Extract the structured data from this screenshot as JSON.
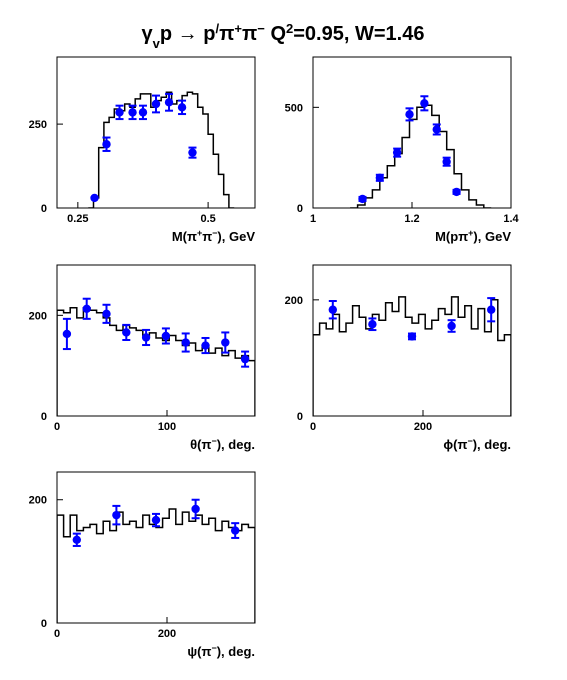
{
  "title": {
    "reaction_gamma": "γ",
    "reaction_gamma_sub": "v",
    "reaction_p": "p",
    "reaction_arrow": " → ",
    "reaction_rest": "p",
    "reaction_prime": "/",
    "reaction_pi1": "π",
    "reaction_pi1_sup": "+",
    "reaction_pi2": "π",
    "reaction_pi2_sup": "−",
    "q2_label": "Q",
    "q2_sup": "2",
    "q2_rest": "=0.95, W=1.46"
  },
  "colors": {
    "data": "#0000ff",
    "histogram": "#000000",
    "frame": "#000000"
  },
  "chart_data": [
    {
      "id": "m-pipi",
      "type": "histogram+errorbar",
      "xlabel_html": "M(π<tspan baseline-shift='super' font-size='9'>+</tspan>π<tspan baseline-shift='super' font-size='9'>−</tspan>), GeV",
      "xlabel": "M(π+π−), GeV",
      "xlim": [
        0.21,
        0.59
      ],
      "ylim": [
        0,
        450
      ],
      "xticks": [
        0.25,
        0.5
      ],
      "xtick_labels": [
        "0.25",
        "0.5"
      ],
      "yticks": [
        0,
        250
      ],
      "ytick_labels": [
        "0",
        "250"
      ],
      "hist": [
        [
          0.27,
          0
        ],
        [
          0.28,
          30
        ],
        [
          0.29,
          180
        ],
        [
          0.3,
          255
        ],
        [
          0.31,
          270
        ],
        [
          0.32,
          295
        ],
        [
          0.33,
          290
        ],
        [
          0.34,
          310
        ],
        [
          0.35,
          300
        ],
        [
          0.36,
          325
        ],
        [
          0.37,
          340
        ],
        [
          0.38,
          340
        ],
        [
          0.39,
          300
        ],
        [
          0.4,
          320
        ],
        [
          0.41,
          330
        ],
        [
          0.42,
          345
        ],
        [
          0.43,
          310
        ],
        [
          0.44,
          320
        ],
        [
          0.45,
          335
        ],
        [
          0.46,
          345
        ],
        [
          0.47,
          340
        ],
        [
          0.48,
          300
        ],
        [
          0.49,
          280
        ],
        [
          0.5,
          220
        ],
        [
          0.51,
          160
        ],
        [
          0.52,
          100
        ],
        [
          0.53,
          40
        ],
        [
          0.54,
          0
        ]
      ],
      "points": [
        [
          0.282,
          30,
          0
        ],
        [
          0.305,
          190,
          20
        ],
        [
          0.33,
          285,
          20
        ],
        [
          0.355,
          285,
          20
        ],
        [
          0.375,
          285,
          20
        ],
        [
          0.4,
          310,
          25
        ],
        [
          0.425,
          315,
          25
        ],
        [
          0.45,
          300,
          20
        ],
        [
          0.47,
          165,
          15
        ]
      ]
    },
    {
      "id": "m-ppi",
      "type": "histogram+errorbar",
      "xlabel_html": "M(pπ<tspan baseline-shift='super' font-size='9'>+</tspan>), GeV",
      "xlabel": "M(pπ+), GeV",
      "xlim": [
        1.0,
        1.4
      ],
      "ylim": [
        0,
        750
      ],
      "xticks": [
        1.0,
        1.2,
        1.4
      ],
      "xtick_labels": [
        "1",
        "1.2",
        "1.4"
      ],
      "yticks": [
        0,
        500
      ],
      "ytick_labels": [
        "0",
        "500"
      ],
      "hist": [
        [
          1.075,
          0
        ],
        [
          1.09,
          15
        ],
        [
          1.105,
          50
        ],
        [
          1.12,
          90
        ],
        [
          1.135,
          150
        ],
        [
          1.15,
          210
        ],
        [
          1.165,
          270
        ],
        [
          1.18,
          350
        ],
        [
          1.195,
          440
        ],
        [
          1.21,
          500
        ],
        [
          1.225,
          510
        ],
        [
          1.24,
          460
        ],
        [
          1.255,
          380
        ],
        [
          1.27,
          290
        ],
        [
          1.285,
          170
        ],
        [
          1.3,
          90
        ],
        [
          1.315,
          40
        ],
        [
          1.33,
          15
        ],
        [
          1.345,
          0
        ]
      ],
      "points": [
        [
          1.1,
          45,
          10
        ],
        [
          1.135,
          150,
          15
        ],
        [
          1.17,
          275,
          20
        ],
        [
          1.195,
          465,
          30
        ],
        [
          1.225,
          520,
          35
        ],
        [
          1.25,
          390,
          25
        ],
        [
          1.27,
          230,
          20
        ],
        [
          1.29,
          80,
          10
        ]
      ]
    },
    {
      "id": "theta-pi",
      "type": "histogram+errorbar",
      "xlabel_html": "θ(π<tspan baseline-shift='super' font-size='9'>−</tspan>), deg.",
      "xlabel": "θ(π−), deg.",
      "xlim": [
        0,
        180
      ],
      "ylim": [
        0,
        300
      ],
      "xticks": [
        0,
        100
      ],
      "xtick_labels": [
        "0",
        "100"
      ],
      "yticks": [
        0,
        200
      ],
      "ytick_labels": [
        "0",
        "200"
      ],
      "hist": [
        [
          0,
          210
        ],
        [
          6,
          205
        ],
        [
          12,
          215
        ],
        [
          18,
          195
        ],
        [
          24,
          215
        ],
        [
          30,
          210
        ],
        [
          36,
          205
        ],
        [
          42,
          195
        ],
        [
          48,
          180
        ],
        [
          54,
          170
        ],
        [
          60,
          180
        ],
        [
          66,
          175
        ],
        [
          72,
          170
        ],
        [
          78,
          160
        ],
        [
          84,
          165
        ],
        [
          90,
          155
        ],
        [
          96,
          150
        ],
        [
          102,
          160
        ],
        [
          108,
          150
        ],
        [
          114,
          140
        ],
        [
          120,
          145
        ],
        [
          126,
          130
        ],
        [
          132,
          140
        ],
        [
          138,
          125
        ],
        [
          144,
          135
        ],
        [
          150,
          120
        ],
        [
          156,
          130
        ],
        [
          162,
          115
        ],
        [
          168,
          120
        ],
        [
          174,
          110
        ]
      ],
      "points": [
        [
          9,
          163,
          30
        ],
        [
          27,
          213,
          20
        ],
        [
          45,
          203,
          18
        ],
        [
          63,
          166,
          15
        ],
        [
          81,
          156,
          15
        ],
        [
          99,
          159,
          15
        ],
        [
          117,
          146,
          18
        ],
        [
          135,
          140,
          15
        ],
        [
          153,
          146,
          20
        ],
        [
          171,
          113,
          15
        ]
      ]
    },
    {
      "id": "phi-pi",
      "type": "histogram+errorbar",
      "xlabel_html": "ϕ(π<tspan baseline-shift='super' font-size='9'>−</tspan>), deg.",
      "xlabel": "ϕ(π−), deg.",
      "xlim": [
        0,
        360
      ],
      "ylim": [
        0,
        260
      ],
      "xticks": [
        0,
        200
      ],
      "xtick_labels": [
        "0",
        "200"
      ],
      "yticks": [
        0,
        200
      ],
      "ytick_labels": [
        "0",
        "200"
      ],
      "hist": [
        [
          0,
          140
        ],
        [
          12,
          160
        ],
        [
          24,
          150
        ],
        [
          36,
          175
        ],
        [
          48,
          145
        ],
        [
          60,
          160
        ],
        [
          72,
          190
        ],
        [
          84,
          170
        ],
        [
          96,
          150
        ],
        [
          108,
          175
        ],
        [
          120,
          165
        ],
        [
          132,
          195
        ],
        [
          144,
          180
        ],
        [
          156,
          205
        ],
        [
          168,
          170
        ],
        [
          180,
          160
        ],
        [
          192,
          175
        ],
        [
          204,
          150
        ],
        [
          216,
          165
        ],
        [
          228,
          185
        ],
        [
          240,
          175
        ],
        [
          252,
          205
        ],
        [
          264,
          170
        ],
        [
          276,
          190
        ],
        [
          288,
          150
        ],
        [
          300,
          185
        ],
        [
          312,
          145
        ],
        [
          324,
          200
        ],
        [
          336,
          130
        ],
        [
          348,
          140
        ]
      ],
      "points": [
        [
          36,
          183,
          15
        ],
        [
          108,
          158,
          10
        ],
        [
          180,
          137,
          5
        ],
        [
          252,
          155,
          10
        ],
        [
          324,
          183,
          20
        ]
      ]
    },
    {
      "id": "psi-pi",
      "type": "histogram+errorbar",
      "xlabel_html": "ψ(π<tspan baseline-shift='super' font-size='9'>−</tspan>), deg.",
      "xlabel": "ψ(π−), deg.",
      "xlim": [
        0,
        360
      ],
      "ylim": [
        0,
        245
      ],
      "xticks": [
        0,
        200
      ],
      "xtick_labels": [
        "0",
        "200"
      ],
      "yticks": [
        0,
        200
      ],
      "ytick_labels": [
        "0",
        "200"
      ],
      "hist": [
        [
          0,
          175
        ],
        [
          12,
          140
        ],
        [
          24,
          175
        ],
        [
          36,
          150
        ],
        [
          48,
          155
        ],
        [
          60,
          160
        ],
        [
          72,
          145
        ],
        [
          84,
          165
        ],
        [
          96,
          150
        ],
        [
          108,
          180
        ],
        [
          120,
          160
        ],
        [
          132,
          165
        ],
        [
          144,
          155
        ],
        [
          156,
          175
        ],
        [
          168,
          160
        ],
        [
          180,
          155
        ],
        [
          192,
          170
        ],
        [
          204,
          185
        ],
        [
          216,
          160
        ],
        [
          228,
          180
        ],
        [
          240,
          165
        ],
        [
          252,
          175
        ],
        [
          264,
          160
        ],
        [
          276,
          170
        ],
        [
          288,
          150
        ],
        [
          300,
          165
        ],
        [
          312,
          155
        ],
        [
          324,
          150
        ],
        [
          336,
          160
        ],
        [
          348,
          155
        ]
      ],
      "points": [
        [
          36,
          135,
          10
        ],
        [
          108,
          175,
          15
        ],
        [
          180,
          167,
          10
        ],
        [
          252,
          185,
          15
        ],
        [
          324,
          150,
          12
        ]
      ]
    }
  ]
}
